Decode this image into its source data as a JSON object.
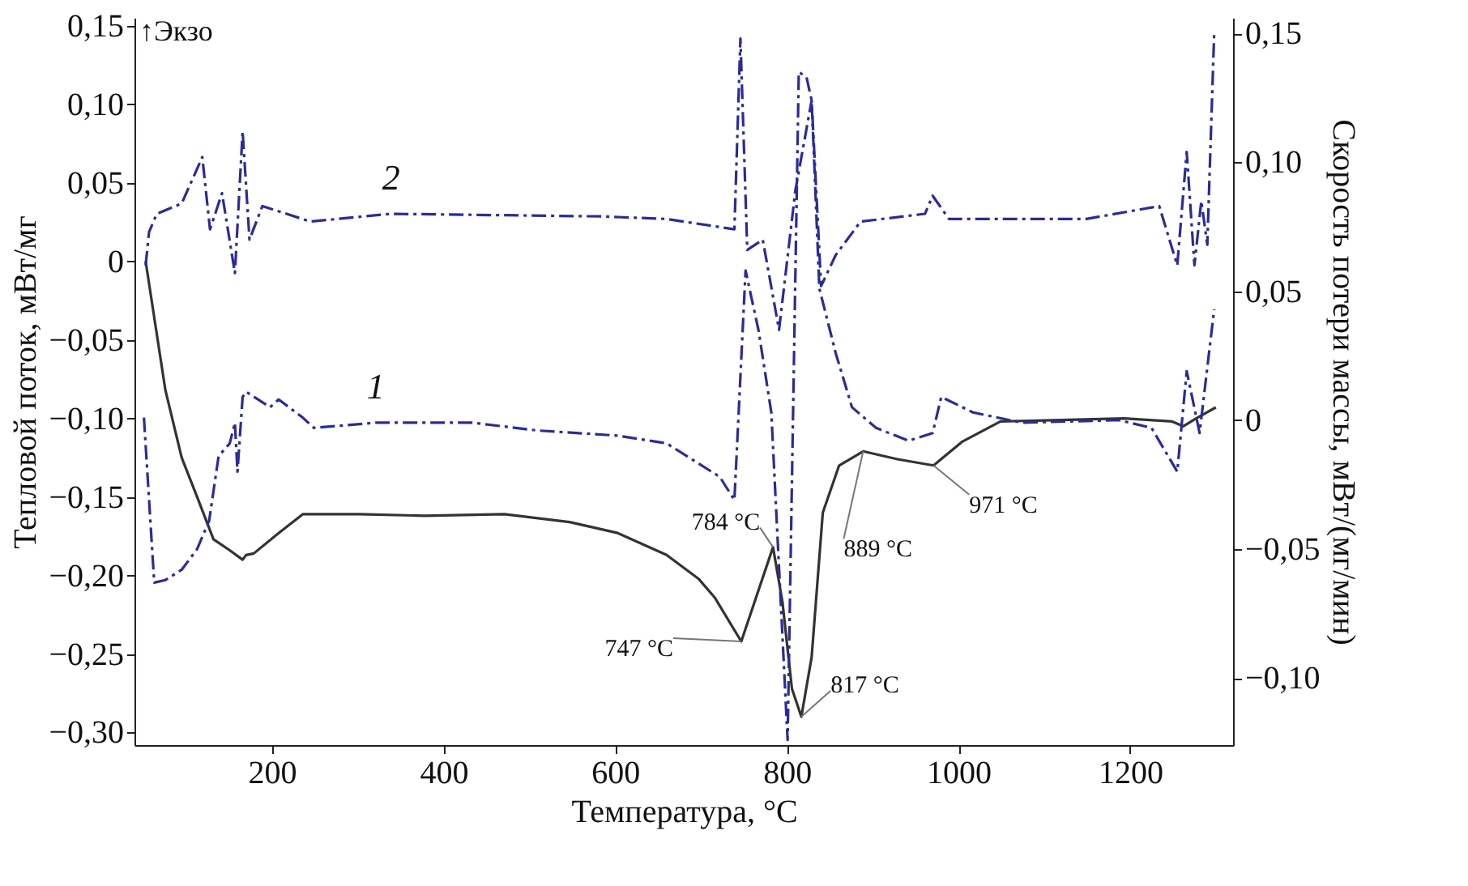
{
  "chart_data": {
    "type": "line",
    "xlabel": "Температура, °C",
    "ylabel": "Тепловой поток, мВт/мг",
    "y2label": "Скорость потери массы, мВт/(мг/мин)",
    "xlim": [
      40,
      1320
    ],
    "xticks": [
      200,
      400,
      600,
      800,
      1000,
      1200
    ],
    "ylim": [
      -0.308,
      0.155
    ],
    "yticks": [
      {
        "value": 0.15,
        "label": "0,15"
      },
      {
        "value": 0.1,
        "label": "0,10"
      },
      {
        "value": 0.05,
        "label": "0,05"
      },
      {
        "value": 0,
        "label": "0"
      },
      {
        "value": -0.05,
        "label": "−0,05"
      },
      {
        "value": -0.1,
        "label": "−0,10"
      },
      {
        "value": -0.15,
        "label": "−0,15"
      },
      {
        "value": -0.2,
        "label": "−0,20"
      },
      {
        "value": -0.25,
        "label": "−0,25"
      },
      {
        "value": -0.3,
        "label": "−0,30"
      }
    ],
    "y2lim": [
      -0.126,
      0.156
    ],
    "y2ticks": [
      {
        "value": 0.15,
        "label": "0,15"
      },
      {
        "value": 0.1,
        "label": "0,10"
      },
      {
        "value": 0.05,
        "label": "0,05"
      },
      {
        "value": 0,
        "label": "0"
      },
      {
        "value": -0.05,
        "label": "−0,05"
      },
      {
        "value": -0.1,
        "label": "−0,10"
      }
    ],
    "grid": false,
    "marker": "none",
    "series": [
      {
        "color": "#333333",
        "line_style": "solid",
        "x": [
          53,
          76,
          95,
          113,
          132,
          151,
          166,
          170,
          179,
          208,
          236,
          302,
          377,
          471,
          547,
          603,
          660,
          697,
          716,
          747,
          784,
          795,
          806,
          817,
          829,
          842,
          861,
          889,
          929,
          971,
          1004,
          1049,
          1193,
          1249,
          1262,
          1277,
          1300
        ],
        "values": [
          0.0,
          -0.082,
          -0.125,
          -0.15,
          -0.177,
          -0.184,
          -0.19,
          -0.187,
          -0.186,
          -0.173,
          -0.161,
          -0.161,
          -0.162,
          -0.161,
          -0.166,
          -0.173,
          -0.187,
          -0.202,
          -0.214,
          -0.242,
          -0.182,
          -0.217,
          -0.272,
          -0.29,
          -0.252,
          -0.16,
          -0.13,
          -0.121,
          -0.126,
          -0.13,
          -0.115,
          -0.102,
          -0.1,
          -0.102,
          -0.105,
          -0.1,
          -0.093
        ]
      },
      {
        "name": "1",
        "color": "#2b2b9a",
        "line_style": "dashed",
        "axis": "y2",
        "x": [
          51,
          63,
          76,
          95,
          113,
          127,
          138,
          151,
          157,
          160,
          166,
          170,
          198,
          208,
          236,
          249,
          321,
          434,
          509,
          603,
          660,
          722,
          739,
          752,
          767,
          782,
          801,
          814,
          823,
          829,
          838,
          857,
          876,
          904,
          942,
          970,
          980,
          1017,
          1074,
          1187,
          1225,
          1255,
          1266,
          1281,
          1298
        ],
        "values": [
          0.001,
          -0.063,
          -0.062,
          -0.058,
          -0.05,
          -0.039,
          -0.014,
          -0.009,
          -0.001,
          -0.02,
          0.009,
          0.011,
          0.005,
          0.008,
          0.001,
          -0.003,
          -0.001,
          -0.001,
          -0.004,
          -0.006,
          -0.009,
          -0.022,
          -0.031,
          0.058,
          0.035,
          0.003,
          -0.124,
          0.135,
          0.133,
          0.124,
          0.051,
          0.026,
          0.005,
          -0.003,
          -0.008,
          -0.005,
          0.009,
          0.003,
          -0.001,
          0.0,
          -0.003,
          -0.02,
          0.019,
          -0.005,
          0.043
        ]
      },
      {
        "name": "2",
        "color": "#2b2b9a",
        "line_style": "dashed",
        "axis": "y2",
        "x": [
          53,
          57,
          66,
          95,
          119,
          128,
          142,
          157,
          166,
          174,
          189,
          245,
          339,
          584,
          660,
          739,
          746,
          754,
          772,
          791,
          810,
          829,
          840,
          857,
          886,
          961,
          970,
          989,
          1149,
          1234,
          1255,
          1266,
          1275,
          1283,
          1290,
          1298
        ],
        "values": [
          0.06,
          0.073,
          0.08,
          0.084,
          0.102,
          0.074,
          0.088,
          0.057,
          0.112,
          0.07,
          0.083,
          0.077,
          0.08,
          0.079,
          0.078,
          0.074,
          0.148,
          0.066,
          0.07,
          0.035,
          0.089,
          0.124,
          0.052,
          0.064,
          0.077,
          0.08,
          0.087,
          0.078,
          0.078,
          0.083,
          0.06,
          0.104,
          0.06,
          0.085,
          0.068,
          0.15
        ]
      }
    ],
    "annotations": [
      "↑Экзо",
      {
        "text": "747 °C",
        "x": 747,
        "y": -0.242
      },
      {
        "text": "784 °C",
        "x": 784,
        "y": -0.182
      },
      {
        "text": "817 °C",
        "x": 817,
        "y": -0.29
      },
      {
        "text": "889 °C",
        "x": 889,
        "y": -0.121
      },
      {
        "text": "971 °C",
        "x": 971,
        "y": -0.13
      }
    ]
  }
}
